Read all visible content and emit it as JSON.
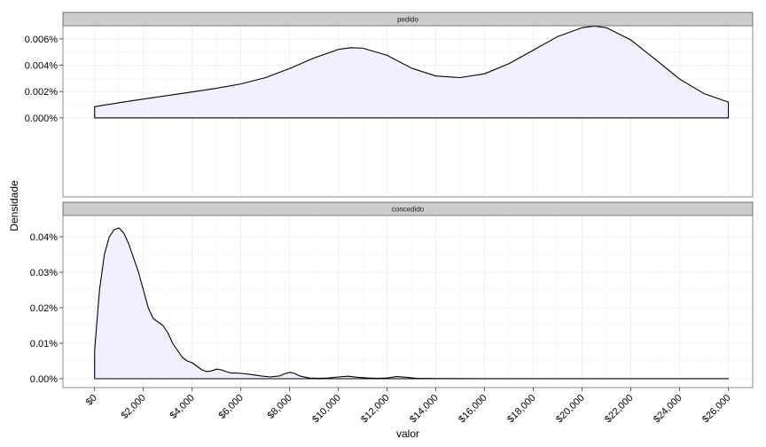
{
  "chart_data": {
    "type": "area",
    "xlabel": "valor",
    "ylabel": "Densidade",
    "xlim": [
      -1300,
      27000
    ],
    "x_ticks": [
      0,
      2000,
      4000,
      6000,
      8000,
      10000,
      12000,
      14000,
      16000,
      18000,
      20000,
      22000,
      24000,
      26000
    ],
    "x_tick_labels": [
      "$0",
      "$2,000",
      "$4,000",
      "$6,000",
      "$8,000",
      "$10,000",
      "$12,000",
      "$14,000",
      "$16,000",
      "$18,000",
      "$20,000",
      "$22,000",
      "$24,000",
      "$26,000"
    ],
    "grid": true,
    "fill_color": "#f0f0ff",
    "line_color": "#000000",
    "strip_color": "#cccccc",
    "panels": [
      {
        "strip_label": "pedido",
        "ylim": [
          -6e-05,
          7e-05
        ],
        "y_ticks": [
          0,
          2e-05,
          4e-05,
          6e-05
        ],
        "y_tick_labels": [
          "0.000%",
          "0.002%",
          "0.004%",
          "0.006%"
        ],
        "x": [
          0,
          1000,
          2000,
          3000,
          4000,
          5000,
          6000,
          7000,
          8000,
          9000,
          10000,
          10500,
          11000,
          12000,
          13000,
          14000,
          15000,
          16000,
          17000,
          18000,
          19000,
          20000,
          20500,
          21000,
          22000,
          23000,
          24000,
          25000,
          26000
        ],
        "y": [
          8.5e-06,
          1.15e-05,
          1.43e-05,
          1.7e-05,
          1.97e-05,
          2.25e-05,
          2.58e-05,
          3.05e-05,
          3.75e-05,
          4.55e-05,
          5.2e-05,
          5.33e-05,
          5.3e-05,
          4.75e-05,
          3.78e-05,
          3.18e-05,
          3.06e-05,
          3.35e-05,
          4.12e-05,
          5.15e-05,
          6.18e-05,
          6.85e-05,
          6.97e-05,
          6.85e-05,
          5.92e-05,
          4.45e-05,
          2.95e-05,
          1.85e-05,
          1.2e-05
        ]
      },
      {
        "strip_label": "concedido",
        "ylim": [
          -2.5e-05,
          0.00046
        ],
        "y_ticks": [
          0,
          0.0001,
          0.0002,
          0.0003,
          0.0004
        ],
        "y_tick_labels": [
          "0.00%",
          "0.01%",
          "0.02%",
          "0.03%",
          "0.04%"
        ],
        "x": [
          0,
          200,
          400,
          600,
          800,
          1000,
          1200,
          1400,
          1600,
          1800,
          2000,
          2200,
          2400,
          2600,
          2800,
          3000,
          3200,
          3400,
          3600,
          3800,
          4000,
          4200,
          4400,
          4600,
          4800,
          5000,
          5200,
          5400,
          5600,
          5800,
          6000,
          6400,
          6800,
          7200,
          7600,
          7800,
          8000,
          8200,
          8400,
          8800,
          9200,
          9600,
          10000,
          10400,
          10800,
          11200,
          11600,
          12000,
          12400,
          12800,
          13200,
          14000,
          16000,
          18000,
          20000,
          22000,
          24000,
          26000
        ],
        "y": [
          8e-05,
          0.00025,
          0.00035,
          0.0004,
          0.00042,
          0.000425,
          0.00041,
          0.00038,
          0.00034,
          0.0003,
          0.00025,
          0.0002,
          0.00017,
          0.00016,
          0.00015,
          0.00013,
          0.0001,
          8e-05,
          6e-05,
          5e-05,
          4.5e-05,
          3.5e-05,
          2.5e-05,
          2e-05,
          2.2e-05,
          2.7e-05,
          2.5e-05,
          2e-05,
          1.6e-05,
          1.6e-05,
          1.5e-05,
          1.2e-05,
          8e-06,
          5e-06,
          8e-06,
          1.4e-05,
          1.8e-05,
          1.5e-05,
          8e-06,
          2e-06,
          1e-06,
          2e-06,
          5e-06,
          7e-06,
          4e-06,
          2e-06,
          1e-06,
          2e-06,
          6e-06,
          4e-06,
          1e-06,
          5e-07,
          2e-07,
          1e-07,
          1e-07,
          1e-07,
          1e-07,
          1e-07
        ]
      }
    ]
  }
}
